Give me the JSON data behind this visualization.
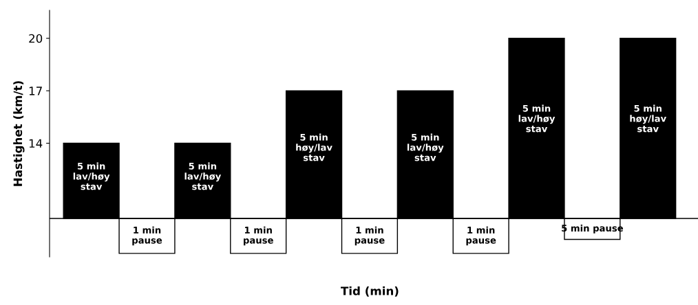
{
  "chart_data": {
    "type": "bar",
    "xlabel": "Tid (min)",
    "ylabel": "Hastighet (km/t)",
    "categories": [
      null,
      null,
      null,
      null,
      null,
      null,
      null,
      null,
      null,
      null,
      null
    ],
    "base": [
      9.7,
      9.7,
      9.7,
      9.7,
      9.7,
      9.7,
      9.7,
      9.7,
      9.7,
      9.7,
      9.7
    ],
    "values": [
      4.3,
      -2.0,
      4.3,
      -2.0,
      7.3,
      -2.0,
      7.3,
      -2.0,
      10.3,
      -1.2,
      10.3
    ],
    "colors": [
      "#000000",
      "#ffffff",
      "#000000",
      "#ffffff",
      "#000000",
      "#ffffff",
      "#000000",
      "#ffffff",
      "#000000",
      "#ffffff",
      "#000000"
    ],
    "annotations": [
      "5 min\nlav/høy\nstav",
      "1 min\npause",
      "5 min\nlav/høy\nstav",
      "1 min\npause",
      "5 min\nhøy/lav\nstav",
      "1 min\npause",
      "5 min\nlav/høy\nstav",
      "1 min\npause",
      "5 min\nlav/høy\nstav",
      "5 min pause",
      "5 min\nhøy/lav\nstav"
    ],
    "ref_lines": [
      {
        "axis": "y",
        "value": 9.7,
        "color": "#000000"
      }
    ],
    "ylim": [
      7.5,
      21.6
    ],
    "yticks": [
      14,
      17,
      20
    ],
    "grid": false
  }
}
